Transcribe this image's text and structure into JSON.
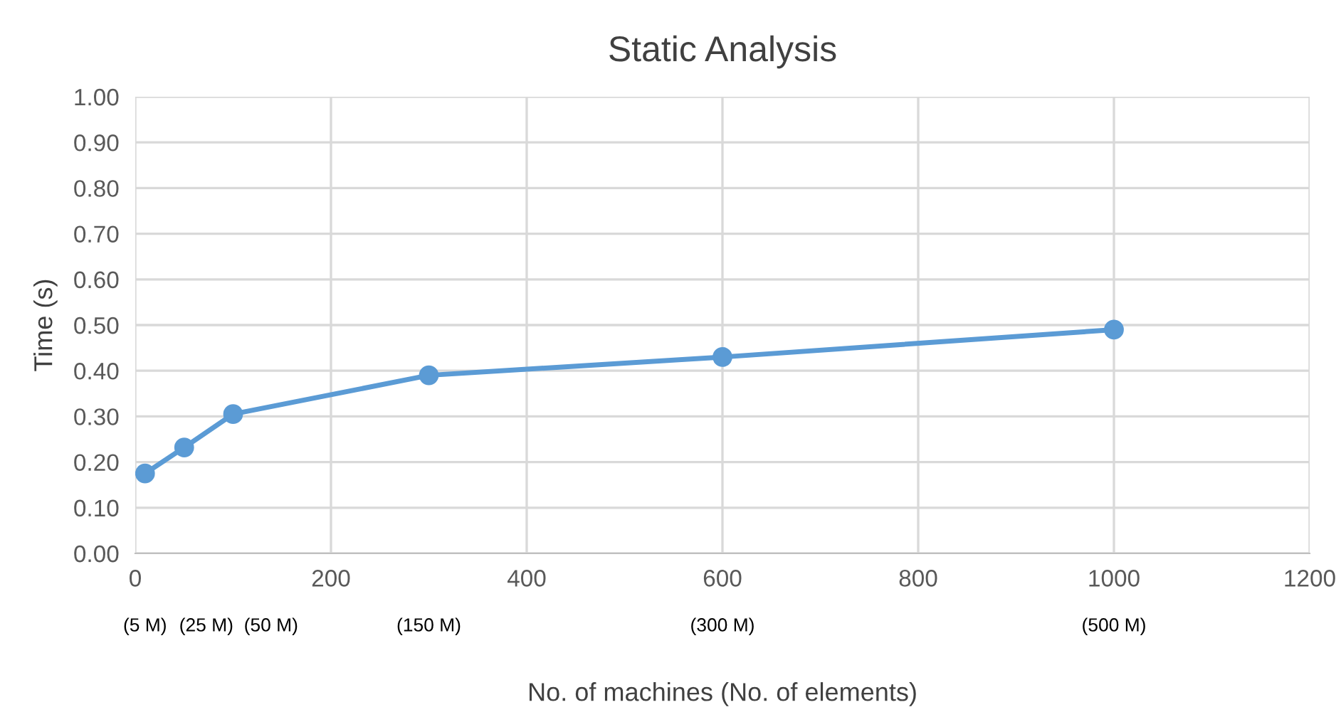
{
  "chart_data": {
    "type": "line",
    "title": "Static Analysis",
    "xlabel": "No. of machines (No. of elements)",
    "ylabel": "Time (s)",
    "x": [
      10,
      50,
      100,
      300,
      600,
      1000
    ],
    "series": [
      {
        "color": "#5b9bd5",
        "values": [
          0.175,
          0.232,
          0.305,
          0.39,
          0.43,
          0.49
        ]
      }
    ],
    "xlim": [
      0,
      1200
    ],
    "xticks": [
      0,
      200,
      400,
      600,
      800,
      1000,
      1200
    ],
    "ylim": [
      0,
      1
    ],
    "yticks": [
      {
        "value": 0,
        "label": "0.00"
      },
      {
        "value": 0.1,
        "label": "0.10"
      },
      {
        "value": 0.2,
        "label": "0.20"
      },
      {
        "value": 0.3,
        "label": "0.30"
      },
      {
        "value": 0.4,
        "label": "0.40"
      },
      {
        "value": 0.5,
        "label": "0.50"
      },
      {
        "value": 0.6,
        "label": "0.60"
      },
      {
        "value": 0.7,
        "label": "0.70"
      },
      {
        "value": 0.8,
        "label": "0.80"
      },
      {
        "value": 0.9,
        "label": "0.90"
      },
      {
        "value": 1,
        "label": "1.00"
      }
    ],
    "grid": true,
    "legend": false,
    "marker": "circle",
    "line_style": "solid",
    "annotations": [
      "(5 M)",
      "(25 M)",
      "(50 M)",
      "(150 M)",
      "(300 M)",
      "(500 M)"
    ]
  }
}
